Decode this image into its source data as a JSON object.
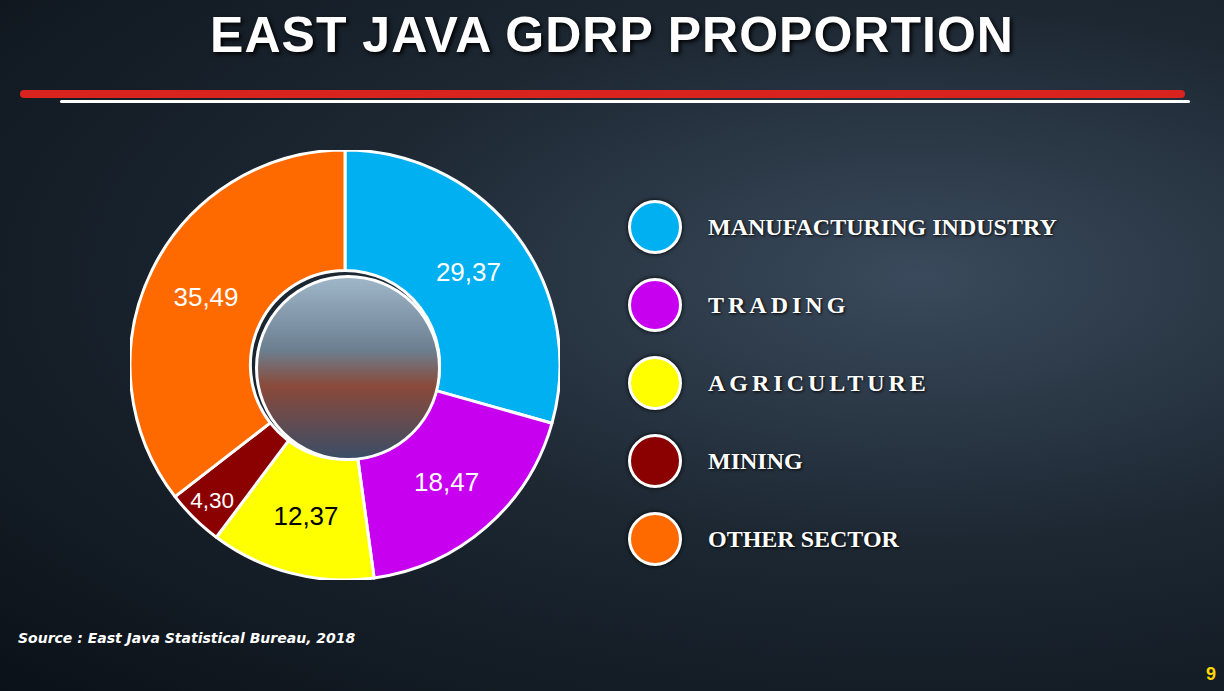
{
  "chart_data": {
    "type": "pie",
    "title": "EAST JAVA GDRP PROPORTION",
    "categories": [
      "MANUFACTURING INDUSTRY",
      "TRADING",
      "AGRICULTURE",
      "MINING",
      "OTHER SECTOR"
    ],
    "values": [
      29.37,
      18.47,
      12.37,
      4.3,
      35.49
    ],
    "value_labels": [
      "29,37",
      "18,47",
      "12,37",
      "4,30",
      "35,49"
    ],
    "colors": [
      "#00b0f0",
      "#c800f0",
      "#ffff00",
      "#8b0000",
      "#ff6a00"
    ],
    "data_labels": true,
    "legend": "right"
  },
  "footer": {
    "source": "Source : East Java Statistical Bureau, 2018",
    "page": "9"
  }
}
